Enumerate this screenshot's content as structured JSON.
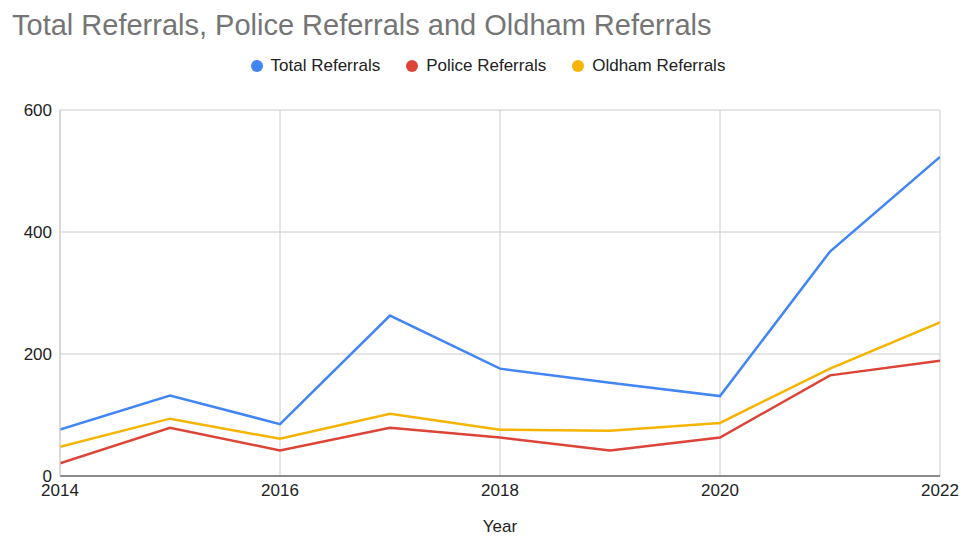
{
  "chart_data": {
    "type": "line",
    "title": "Total Referrals, Police Referrals and Oldham Referrals",
    "x_label": "Year",
    "x": [
      2014,
      2015,
      2016,
      2017,
      2018,
      2019,
      2020,
      2021,
      2022
    ],
    "series": [
      {
        "name": "Total Referrals",
        "color": "#4285f4",
        "values": [
          76,
          132,
          85,
          263,
          176,
          153,
          131,
          368,
          523
        ]
      },
      {
        "name": "Police Referrals",
        "color": "#db4437",
        "values": [
          21,
          79,
          42,
          79,
          63,
          42,
          63,
          165,
          189
        ]
      },
      {
        "name": "Oldham Referrals",
        "color": "#f4b400",
        "values": [
          48,
          94,
          61,
          102,
          76,
          74,
          87,
          176,
          252
        ]
      }
    ],
    "xlim": [
      2014,
      2022
    ],
    "xticks": [
      2014,
      2016,
      2018,
      2020,
      2022
    ],
    "ylim": [
      0,
      600
    ],
    "yticks": [
      0,
      200,
      400,
      600
    ],
    "grid": true,
    "legend": "top"
  }
}
